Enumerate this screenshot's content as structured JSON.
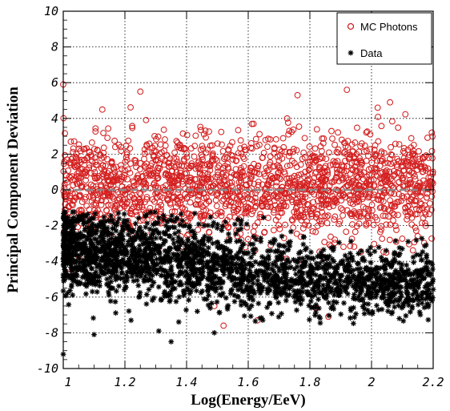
{
  "chart_data": {
    "type": "scatter",
    "xlabel": "Log(Energy/EeV)",
    "ylabel": "Principal Component Deviation",
    "xlim": [
      1,
      2.2
    ],
    "ylim": [
      -10,
      10
    ],
    "x_ticks": [
      "1",
      "1.2",
      "1.4",
      "1.6",
      "1.8",
      "2",
      "2.2"
    ],
    "y_ticks": [
      "10",
      "8",
      "6",
      "4",
      "2",
      "0",
      "-2",
      "-4",
      "-6",
      "-8",
      "-10"
    ],
    "grid": true,
    "legend_position": "top-right",
    "reference_line": {
      "y": 0,
      "style": "dashed"
    },
    "series": [
      {
        "name": "MC Photons",
        "marker": "open-circle",
        "color": "#d42020",
        "distribution": {
          "x_range": [
            1.0,
            2.2
          ],
          "y_mean": 0.2,
          "y_spread": 1.4
        },
        "notable_points": [
          {
            "x": 1.0,
            "y": 5.9
          },
          {
            "x": 1.25,
            "y": 5.5
          },
          {
            "x": 1.92,
            "y": 5.6
          },
          {
            "x": 1.76,
            "y": 5.3
          },
          {
            "x": 2.06,
            "y": 4.9
          },
          {
            "x": 2.02,
            "y": 4.6
          },
          {
            "x": 1.52,
            "y": -7.6
          },
          {
            "x": 1.63,
            "y": -7.3
          },
          {
            "x": 1.86,
            "y": -7.1
          },
          {
            "x": 1.49,
            "y": -6.5
          },
          {
            "x": 1.82,
            "y": -6.6
          }
        ]
      },
      {
        "name": "Data",
        "marker": "asterisk",
        "color": "#000000",
        "distribution": {
          "x_range": [
            1.0,
            2.2
          ],
          "y_mean_start": -3.3,
          "y_mean_end": -5.2,
          "y_spread": 1.2
        },
        "notable_points": [
          {
            "x": 1.0,
            "y": -9.2
          },
          {
            "x": 1.1,
            "y": -8.1
          },
          {
            "x": 1.31,
            "y": -7.9
          },
          {
            "x": 1.35,
            "y": -8.5
          },
          {
            "x": 1.49,
            "y": -8.0
          },
          {
            "x": 1.22,
            "y": -7.3
          },
          {
            "x": 1.82,
            "y": -6.6
          },
          {
            "x": 2.09,
            "y": -7.2
          }
        ]
      }
    ]
  }
}
